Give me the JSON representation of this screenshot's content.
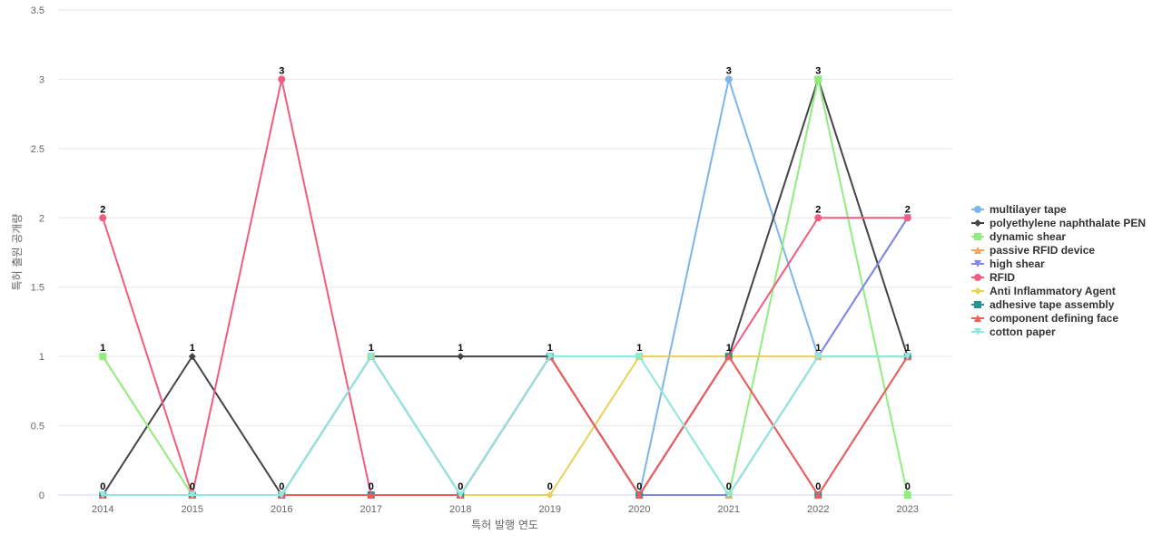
{
  "chart_data": {
    "type": "line",
    "title": "",
    "xlabel": "특허 발행 연도",
    "ylabel": "특허 출원 공개량",
    "categories": [
      "2014",
      "2015",
      "2016",
      "2017",
      "2018",
      "2019",
      "2020",
      "2021",
      "2022",
      "2023"
    ],
    "ylim": [
      0,
      3.5
    ],
    "yticks": [
      "0",
      "0.5",
      "1",
      "1.5",
      "2",
      "2.5",
      "3",
      "3.5"
    ],
    "grid": true,
    "legend_position": "right",
    "series": [
      {
        "name": "multilayer tape",
        "color": "#7cb5ec",
        "marker": "circle",
        "values": [
          0,
          0,
          0,
          1,
          0,
          1,
          0,
          3,
          1,
          2
        ]
      },
      {
        "name": "polyethylene naphthalate PEN",
        "color": "#434348",
        "marker": "diamond",
        "values": [
          0,
          1,
          0,
          1,
          1,
          1,
          0,
          1,
          3,
          1
        ]
      },
      {
        "name": "dynamic shear",
        "color": "#90ed7d",
        "marker": "square",
        "values": [
          1,
          0,
          0,
          1,
          0,
          1,
          1,
          0,
          3,
          0
        ]
      },
      {
        "name": "passive RFID device",
        "color": "#f7a35c",
        "marker": "triangle",
        "values": [
          0,
          0,
          0,
          1,
          0,
          1,
          0,
          0,
          1,
          1
        ]
      },
      {
        "name": "high shear",
        "color": "#8085e9",
        "marker": "triangle-down",
        "values": [
          0,
          0,
          0,
          1,
          0,
          1,
          0,
          0,
          1,
          2
        ]
      },
      {
        "name": "RFID",
        "color": "#f15c80",
        "marker": "circle",
        "values": [
          2,
          0,
          3,
          0,
          0,
          1,
          0,
          1,
          2,
          2
        ]
      },
      {
        "name": "Anti Inflammatory Agent",
        "color": "#e4d354",
        "marker": "diamond",
        "values": [
          0,
          0,
          0,
          0,
          0,
          0,
          1,
          1,
          1,
          1
        ]
      },
      {
        "name": "adhesive tape assembly",
        "color": "#2b908f",
        "marker": "square",
        "values": [
          0,
          0,
          0,
          0,
          0,
          1,
          0,
          1,
          0,
          1
        ]
      },
      {
        "name": "component defining face",
        "color": "#f45b5b",
        "marker": "triangle",
        "values": [
          0,
          0,
          0,
          0,
          0,
          1,
          0,
          1,
          0,
          1
        ]
      },
      {
        "name": "cotton paper",
        "color": "#91e8e1",
        "marker": "triangle-down",
        "values": [
          0,
          0,
          0,
          1,
          0,
          1,
          1,
          0,
          1,
          1
        ]
      }
    ],
    "data_labels": [
      {
        "category": "2014",
        "value": 2,
        "text": "2"
      },
      {
        "category": "2014",
        "value": 1,
        "text": "1"
      },
      {
        "category": "2014",
        "value": 0,
        "text": "0"
      },
      {
        "category": "2015",
        "value": 1,
        "text": "1"
      },
      {
        "category": "2015",
        "value": 0,
        "text": "0"
      },
      {
        "category": "2016",
        "value": 3,
        "text": "3"
      },
      {
        "category": "2016",
        "value": 0,
        "text": "0"
      },
      {
        "category": "2017",
        "value": 1,
        "text": "1"
      },
      {
        "category": "2017",
        "value": 0,
        "text": "0"
      },
      {
        "category": "2018",
        "value": 1,
        "text": "1"
      },
      {
        "category": "2018",
        "value": 0,
        "text": "0"
      },
      {
        "category": "2019",
        "value": 1,
        "text": "1"
      },
      {
        "category": "2019",
        "value": 0,
        "text": "0"
      },
      {
        "category": "2020",
        "value": 1,
        "text": "1"
      },
      {
        "category": "2020",
        "value": 0,
        "text": "0"
      },
      {
        "category": "2021",
        "value": 3,
        "text": "3"
      },
      {
        "category": "2021",
        "value": 1,
        "text": "1"
      },
      {
        "category": "2021",
        "value": 0,
        "text": "0"
      },
      {
        "category": "2022",
        "value": 3,
        "text": "3"
      },
      {
        "category": "2022",
        "value": 2,
        "text": "2"
      },
      {
        "category": "2022",
        "value": 1,
        "text": "1"
      },
      {
        "category": "2022",
        "value": 0,
        "text": "0"
      },
      {
        "category": "2023",
        "value": 2,
        "text": "2"
      },
      {
        "category": "2023",
        "value": 1,
        "text": "1"
      },
      {
        "category": "2023",
        "value": 0,
        "text": "0"
      }
    ]
  }
}
